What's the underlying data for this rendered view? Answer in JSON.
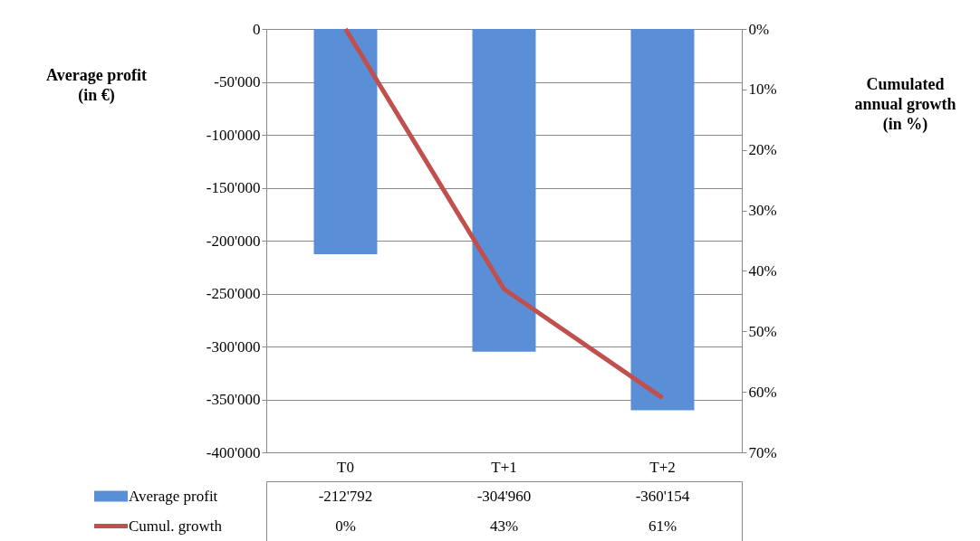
{
  "chart_data": {
    "type": "bar",
    "categories": [
      "T0",
      "T+1",
      "T+2"
    ],
    "ylabel": "Average profit\n(in €)",
    "y2label": "Cumulated\nannual growth\n(in %)",
    "series": [
      {
        "name": "Average profit",
        "color": "#5a8fd8",
        "values": [
          -212792,
          -304960,
          -360154
        ],
        "value_labels": [
          "-212'792",
          "-304'960",
          "-360'154"
        ]
      },
      {
        "name": "Cumul. growth",
        "type": "line",
        "axis": "y2",
        "color": "#c0504d",
        "values": [
          0,
          43,
          61
        ],
        "value_labels": [
          "0%",
          "43%",
          "61%"
        ]
      }
    ],
    "ylim": [
      -400000,
      0
    ],
    "yticks": [
      {
        "value": -400000,
        "label": "-400'000"
      },
      {
        "value": -350000,
        "label": "-350'000"
      },
      {
        "value": -300000,
        "label": "-300'000"
      },
      {
        "value": -250000,
        "label": "-250'000"
      },
      {
        "value": -200000,
        "label": "-200'000"
      },
      {
        "value": -150000,
        "label": "-150'000"
      },
      {
        "value": -100000,
        "label": "-100'000"
      },
      {
        "value": -50000,
        "label": "-50'000"
      },
      0
    ],
    "y2lim": [
      70,
      0
    ],
    "y2ticks": [
      {
        "value": 0,
        "label": "0%"
      },
      {
        "value": 10,
        "label": "10%"
      },
      {
        "value": 20,
        "label": "20%"
      },
      {
        "value": 30,
        "label": "30%"
      },
      {
        "value": 40,
        "label": "40%"
      },
      {
        "value": 50,
        "label": "50%"
      },
      {
        "value": 60,
        "label": "60%"
      },
      {
        "value": 70,
        "label": "70%"
      }
    ],
    "grid": "y",
    "legend": "bottom",
    "marker": "none",
    "line_style": "solid"
  }
}
